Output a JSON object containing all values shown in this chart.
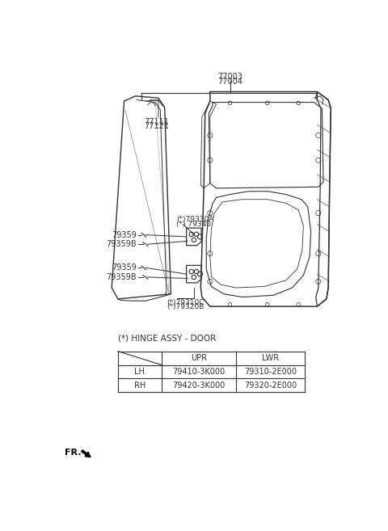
{
  "bg_color": "#ffffff",
  "fig_width": 4.8,
  "fig_height": 6.57,
  "dpi": 100,
  "line_color": "#333333",
  "text_color": "#333333",
  "table_text_color": "#333333",
  "hinge_label": "(*) HINGE ASSY - DOOR",
  "table_headers": [
    "",
    "UPR",
    "LWR"
  ],
  "table_row1": [
    "LH",
    "79410-3K000",
    "79310-2E000"
  ],
  "table_row2": [
    "RH",
    "79420-3K000",
    "79320-2E000"
  ],
  "fr_label": "FR.",
  "label_77003": "77003",
  "label_77004": "77004",
  "label_77111": "77111",
  "label_77121": "77121",
  "label_79330A": "(*)79330A",
  "label_79340": "(*) 79340",
  "label_79359_u": "79359",
  "label_79359B_u": "79359B",
  "label_79359_l": "79359",
  "label_79359B_l": "79359B",
  "label_79310C": "(*)79310C",
  "label_79320B": "(*)79320B"
}
